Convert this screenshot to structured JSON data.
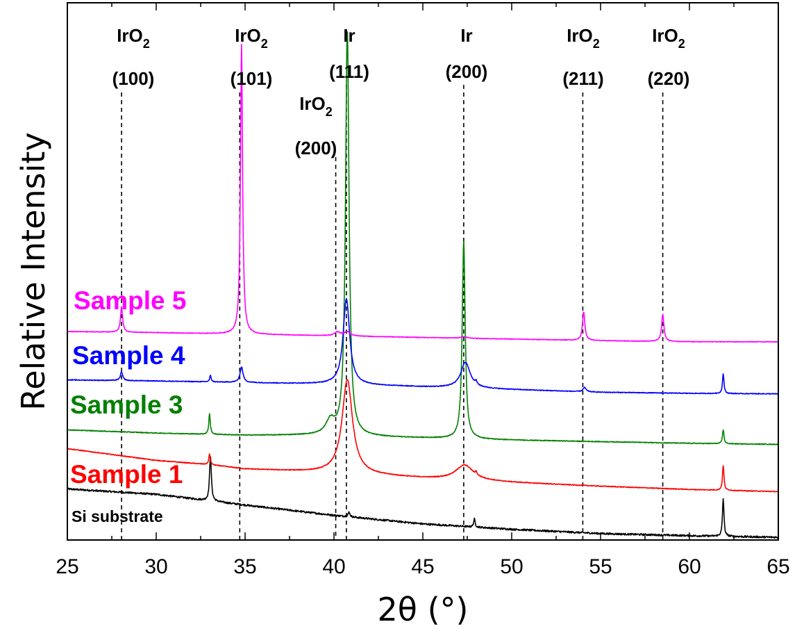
{
  "chart_data": {
    "type": "line",
    "title": "",
    "xlabel": "2θ (°)",
    "ylabel": "Relative Intensity",
    "xlim": [
      25,
      65
    ],
    "xticks": [
      "25",
      "30",
      "35",
      "40",
      "45",
      "50",
      "55",
      "60",
      "65"
    ],
    "ylim": [
      0,
      100
    ],
    "yticks_shown": false,
    "grid": false,
    "reference_lines": [
      {
        "x": 28.05,
        "phase": "IrO",
        "sub": "2",
        "hkl": "(100)"
      },
      {
        "x": 34.7,
        "phase": "IrO",
        "sub": "2",
        "hkl": "(101)"
      },
      {
        "x": 40.1,
        "phase": "IrO",
        "sub": "2",
        "hkl": "(200)"
      },
      {
        "x": 40.7,
        "phase": "Ir",
        "sub": "",
        "hkl": "(111)"
      },
      {
        "x": 47.3,
        "phase": "Ir",
        "sub": "",
        "hkl": "(200)"
      },
      {
        "x": 54.0,
        "phase": "IrO",
        "sub": "2",
        "hkl": "(211)"
      },
      {
        "x": 58.5,
        "phase": "IrO",
        "sub": "2",
        "hkl": "(220)"
      }
    ],
    "series": [
      {
        "name": "Si substrate",
        "color": "#000000",
        "label_size": "small",
        "baseline": [
          [
            25,
            9.5
          ],
          [
            30,
            8.5
          ],
          [
            35,
            6.5
          ],
          [
            40,
            4.6
          ],
          [
            45,
            3.0
          ],
          [
            50,
            2.0
          ],
          [
            55,
            1.2
          ],
          [
            60,
            0.8
          ],
          [
            65,
            0.5
          ]
        ],
        "peaks": [
          [
            33.05,
            8.5,
            0.06
          ],
          [
            40.85,
            0.9,
            0.06
          ],
          [
            47.9,
            1.5,
            0.05
          ],
          [
            61.9,
            7.0,
            0.05
          ]
        ],
        "noise": 0.35
      },
      {
        "name": "Sample 1",
        "color": "#ff0000",
        "label_size": "large",
        "baseline": [
          [
            25,
            17
          ],
          [
            30,
            14.8
          ],
          [
            33,
            14.0
          ],
          [
            35,
            13.2
          ],
          [
            40,
            12.5
          ],
          [
            45,
            11.5
          ],
          [
            50,
            10.7
          ],
          [
            55,
            10.0
          ],
          [
            60,
            9.4
          ],
          [
            65,
            9.0
          ]
        ],
        "peaks": [
          [
            40.75,
            17.5,
            0.35
          ],
          [
            47.35,
            2.8,
            0.6
          ],
          [
            33.0,
            2.0,
            0.05
          ],
          [
            48.0,
            0.6,
            0.04
          ],
          [
            61.9,
            4.6,
            0.05
          ]
        ],
        "noise": 0.15
      },
      {
        "name": "Sample 3",
        "color": "#008000",
        "label_size": "large",
        "baseline": [
          [
            25,
            20.5
          ],
          [
            30,
            19.9
          ],
          [
            35,
            19.5
          ],
          [
            38.5,
            19.5
          ],
          [
            40,
            19.4
          ],
          [
            45,
            19.0
          ],
          [
            50,
            18.6
          ],
          [
            55,
            18.3
          ],
          [
            60,
            18.0
          ],
          [
            65,
            17.8
          ]
        ],
        "peaks": [
          [
            40.75,
            75.5,
            0.12
          ],
          [
            39.8,
            2.6,
            0.3
          ],
          [
            47.3,
            36.7,
            0.1
          ],
          [
            33.0,
            3.9,
            0.05
          ],
          [
            61.9,
            2.6,
            0.05
          ]
        ],
        "noise": 0.15
      },
      {
        "name": "Sample 4",
        "color": "#0000ff",
        "label_size": "large",
        "baseline": [
          [
            25,
            29.8
          ],
          [
            30,
            29.6
          ],
          [
            35,
            29.3
          ],
          [
            40,
            29.0
          ],
          [
            45,
            28.5
          ],
          [
            50,
            28.0
          ],
          [
            55,
            27.5
          ],
          [
            60,
            27.3
          ],
          [
            65,
            27.2
          ]
        ],
        "peaks": [
          [
            40.7,
            16.0,
            0.22
          ],
          [
            47.4,
            4.8,
            0.32
          ],
          [
            28.05,
            1.6,
            0.08
          ],
          [
            33.05,
            1.2,
            0.05
          ],
          [
            34.8,
            2.9,
            0.1
          ],
          [
            48.0,
            0.6,
            0.05
          ],
          [
            54.1,
            0.8,
            0.1
          ],
          [
            61.9,
            3.7,
            0.05
          ]
        ],
        "noise": 0.15
      },
      {
        "name": "Sample 5",
        "color": "#ff00ff",
        "label_size": "large",
        "baseline": [
          [
            25,
            38.8
          ],
          [
            30,
            38.6
          ],
          [
            35,
            38.3
          ],
          [
            40,
            38.0
          ],
          [
            45,
            37.7
          ],
          [
            50,
            37.4
          ],
          [
            55,
            37.1
          ],
          [
            60,
            36.9
          ],
          [
            65,
            36.9
          ]
        ],
        "peaks": [
          [
            34.8,
            54.0,
            0.07
          ],
          [
            28.05,
            4.8,
            0.07
          ],
          [
            40.2,
            0.7,
            0.2
          ],
          [
            40.75,
            0.8,
            0.2
          ],
          [
            47.3,
            0.3,
            0.2
          ],
          [
            54.05,
            5.3,
            0.08
          ],
          [
            58.5,
            5.0,
            0.08
          ]
        ],
        "noise": 0.12
      }
    ]
  }
}
